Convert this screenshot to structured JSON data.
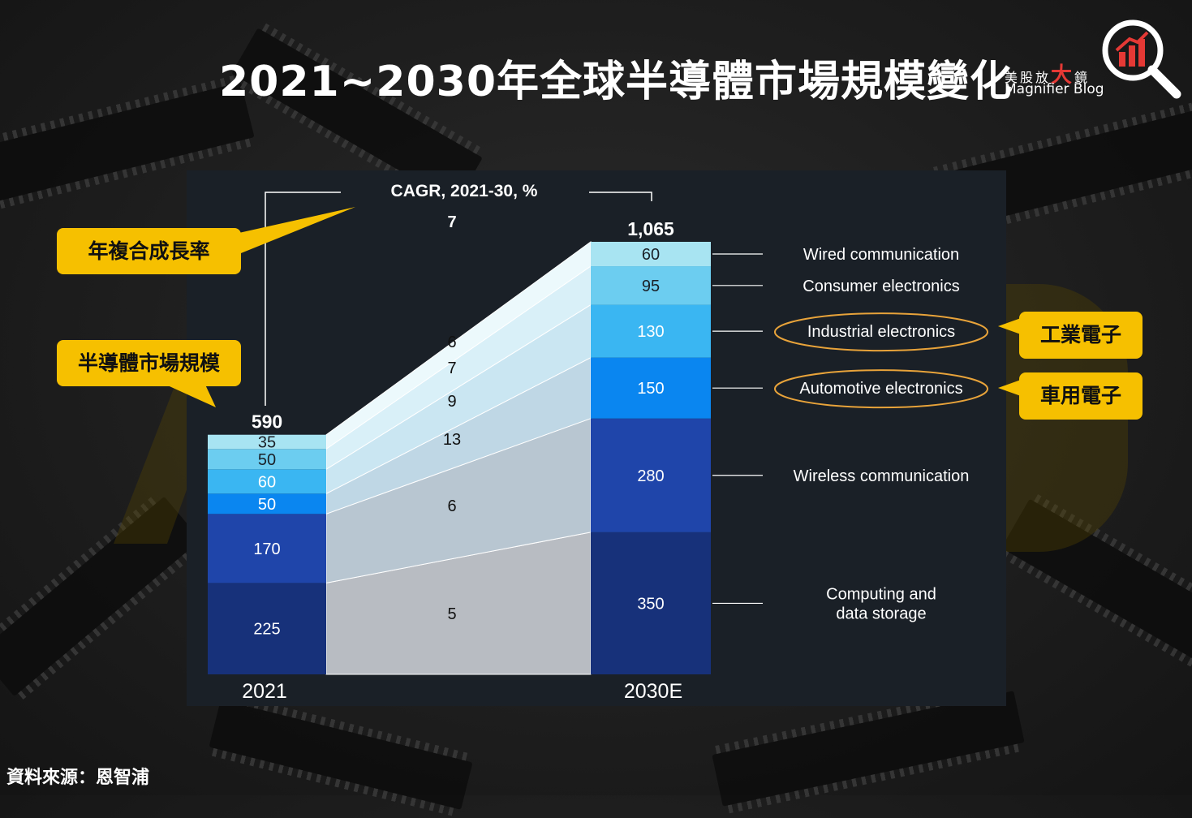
{
  "header": {
    "title": "2021~2030年全球半導體市場規模變化"
  },
  "logo": {
    "cn_prefix": "美股放",
    "cn_big": "大",
    "cn_suffix": "鏡",
    "en": "Magnifier Blog",
    "icon": "magnifier-bar-chart-icon",
    "accent_color": "#e53935"
  },
  "callouts": {
    "cagr_label": "年複合成長率",
    "market_size_label": "半導體市場規模",
    "industrial_label": "工業電子",
    "automotive_label": "車用電子",
    "color": "#f6c000"
  },
  "source": "資料來源：恩智浦",
  "chart_data": {
    "type": "bar",
    "stacked": true,
    "categories": [
      "2021",
      "2030E"
    ],
    "cagr_header": "CAGR, 2021-30, %",
    "totals": [
      "590",
      "1,065"
    ],
    "series": [
      {
        "name": "Computing and data storage",
        "values": [
          225,
          350
        ],
        "cagr": "5",
        "color": "#17317a"
      },
      {
        "name": "Wireless communication",
        "values": [
          170,
          280
        ],
        "cagr": "6",
        "color": "#1f45aa"
      },
      {
        "name": "Automotive electronics",
        "values": [
          50,
          150
        ],
        "cagr": "13",
        "color": "#0a86f0"
      },
      {
        "name": "Industrial electronics",
        "values": [
          60,
          130
        ],
        "cagr": "9",
        "color": "#3ab6f2"
      },
      {
        "name": "Consumer electronics",
        "values": [
          50,
          95
        ],
        "cagr": "7",
        "color": "#6ccdf0"
      },
      {
        "name": "Wired communication",
        "values": [
          35,
          60
        ],
        "cagr": "6",
        "color": "#a8e4f2"
      }
    ],
    "total_cagr": "7",
    "highlighted": [
      "Industrial electronics",
      "Automotive electronics"
    ]
  }
}
